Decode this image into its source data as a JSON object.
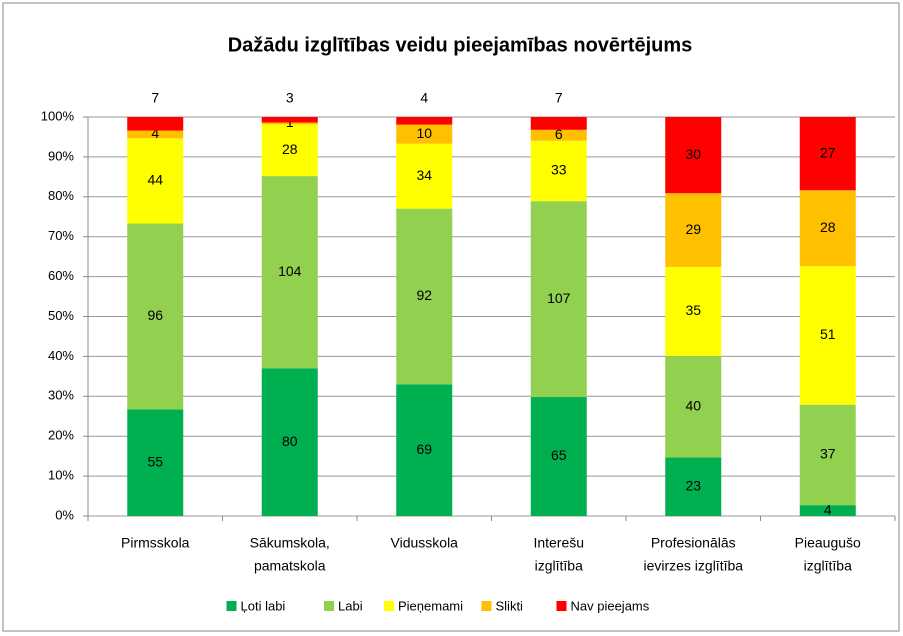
{
  "chart_data": {
    "type": "bar",
    "stacking": "percent",
    "title": "Dažādu izglītības veidu pieejamības novērtējums",
    "categories": [
      [
        "Pirmsskola"
      ],
      [
        "Sākumskola,",
        "pamatskola"
      ],
      [
        "Vidusskola"
      ],
      [
        "Interešu",
        "izglītība"
      ],
      [
        "Profesionālās",
        "ievirzes izglītība"
      ],
      [
        "Pieaugušo",
        "izglītība"
      ]
    ],
    "series": [
      {
        "name": "Ļoti labi",
        "color": "#00b050",
        "values": [
          55,
          80,
          69,
          65,
          23,
          4
        ]
      },
      {
        "name": "Labi",
        "color": "#92d050",
        "values": [
          96,
          104,
          92,
          107,
          40,
          37
        ]
      },
      {
        "name": "Pieņemami",
        "color": "#ffff00",
        "values": [
          44,
          28,
          34,
          33,
          35,
          51
        ]
      },
      {
        "name": "Slikti",
        "color": "#ffc000",
        "values": [
          4,
          1,
          10,
          6,
          29,
          28
        ]
      },
      {
        "name": "Nav pieejams",
        "color": "#ff0000",
        "values": [
          7,
          3,
          4,
          7,
          30,
          27
        ]
      }
    ],
    "ylim": [
      0,
      100
    ],
    "yticks": [
      {
        "value": 0,
        "label": "0%"
      },
      {
        "value": 10,
        "label": "10%"
      },
      {
        "value": 20,
        "label": "20%"
      },
      {
        "value": 30,
        "label": "30%"
      },
      {
        "value": 40,
        "label": "40%"
      },
      {
        "value": 50,
        "label": "50%"
      },
      {
        "value": 60,
        "label": "60%"
      },
      {
        "value": 70,
        "label": "70%"
      },
      {
        "value": 80,
        "label": "80%"
      },
      {
        "value": 90,
        "label": "90%"
      },
      {
        "value": 100,
        "label": "100%"
      }
    ],
    "grid": true,
    "legend": "bottom"
  }
}
